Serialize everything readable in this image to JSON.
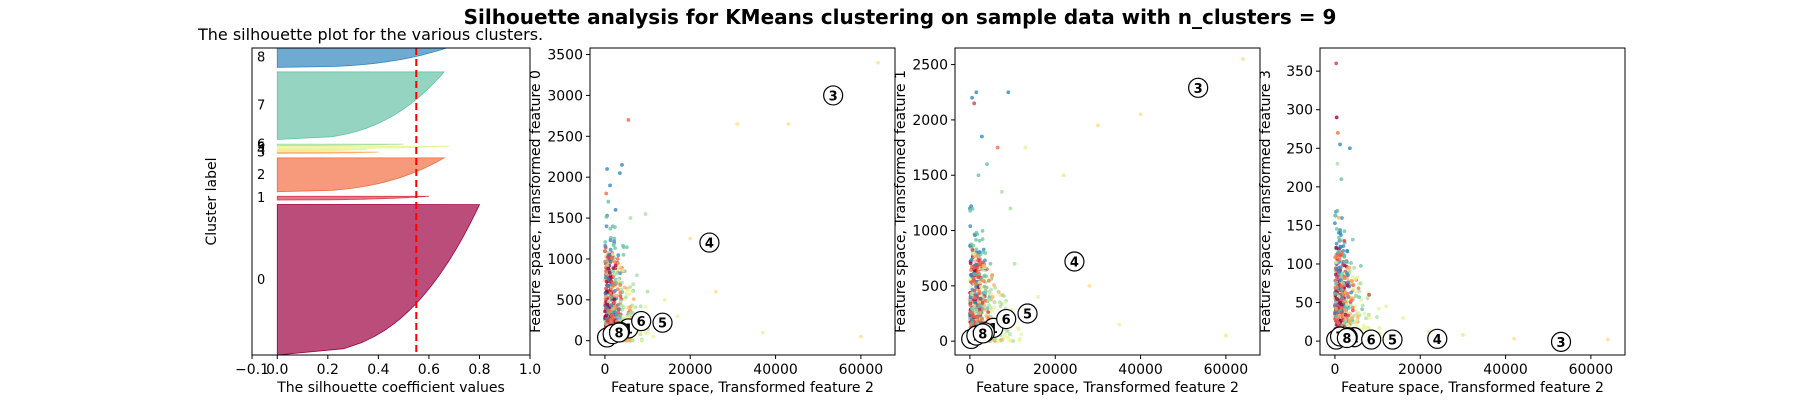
{
  "figure": {
    "title": "Silhouette analysis for KMeans clustering on sample data with n_clusters = 9"
  },
  "palette": [
    "#9e0142",
    "#d53e4f",
    "#f46d43",
    "#fdae61",
    "#fee08b",
    "#e6f598",
    "#abdda4",
    "#66c2a5",
    "#3288bd"
  ],
  "chart_data": [
    {
      "type": "silhouette",
      "title": "The silhouette plot for the various clusters.",
      "xlabel": "The silhouette coefficient values",
      "ylabel": "Cluster label",
      "xlim": [
        -0.1,
        1.0
      ],
      "xticks": [
        -0.1,
        0.0,
        0.2,
        0.4,
        0.6,
        0.8,
        1.0
      ],
      "xtick_labels": [
        "−0.1",
        "0.0",
        "0.2",
        "0.4",
        "0.6",
        "0.8",
        "1.0"
      ],
      "average_silhouette": 0.55,
      "clusters": [
        {
          "label": "0",
          "start": 0.0,
          "size": 0.49,
          "max": 0.8,
          "min": 0.0
        },
        {
          "label": "1",
          "start": 0.505,
          "size": 0.012,
          "max": 0.6,
          "min": 0.0
        },
        {
          "label": "2",
          "start": 0.532,
          "size": 0.11,
          "max": 0.66,
          "min": 0.0
        },
        {
          "label": "3",
          "start": 0.657,
          "size": 0.004,
          "max": 0.4,
          "min": 0.0
        },
        {
          "label": "4",
          "start": 0.666,
          "size": 0.003,
          "max": 0.35,
          "min": 0.0
        },
        {
          "label": "5",
          "start": 0.672,
          "size": 0.008,
          "max": 0.68,
          "min": 0.0
        },
        {
          "label": "6",
          "start": 0.683,
          "size": 0.004,
          "max": 0.5,
          "min": 0.0
        },
        {
          "label": "7",
          "start": 0.702,
          "size": 0.22,
          "max": 0.66,
          "min": 0.0
        },
        {
          "label": "8",
          "start": 0.937,
          "size": 0.063,
          "max": 0.67,
          "min": 0.0
        }
      ]
    },
    {
      "type": "scatter",
      "xlabel": "Feature space, Transformed feature 2",
      "ylabel": "Feature space, Transformed feature 0",
      "xlim": [
        -3500,
        68000
      ],
      "ylim": [
        -175,
        3580
      ],
      "xticks": [
        0,
        20000,
        40000,
        60000
      ],
      "yticks": [
        0,
        500,
        1000,
        1500,
        2000,
        2500,
        3000,
        3500
      ],
      "centers": [
        {
          "label": "0",
          "x": 500,
          "y": 40
        },
        {
          "label": "1",
          "x": 5500,
          "y": 150
        },
        {
          "label": "2",
          "x": 3500,
          "y": 110
        },
        {
          "label": "3",
          "x": 53500,
          "y": 3000
        },
        {
          "label": "4",
          "x": 24500,
          "y": 1200
        },
        {
          "label": "5",
          "x": 13500,
          "y": 220
        },
        {
          "label": "6",
          "x": 8500,
          "y": 240
        },
        {
          "label": "7",
          "x": 1800,
          "y": 80
        },
        {
          "label": "8",
          "x": 3300,
          "y": 100
        }
      ],
      "points": [
        {
          "x": 500,
          "y": 2100,
          "c": 8
        },
        {
          "x": 1200,
          "y": 1900,
          "c": 8
        },
        {
          "x": 2500,
          "y": 1600,
          "c": 8
        },
        {
          "x": 3500,
          "y": 2050,
          "c": 8
        },
        {
          "x": 4000,
          "y": 2150,
          "c": 8
        },
        {
          "x": 1800,
          "y": 1400,
          "c": 7
        },
        {
          "x": 800,
          "y": 1700,
          "c": 7
        },
        {
          "x": 2200,
          "y": 1250,
          "c": 7
        },
        {
          "x": 300,
          "y": 1800,
          "c": 2
        },
        {
          "x": 3000,
          "y": 1000,
          "c": 2
        },
        {
          "x": 5500,
          "y": 2700,
          "c": 2
        },
        {
          "x": 6000,
          "y": 1500,
          "c": 6
        },
        {
          "x": 7500,
          "y": 800,
          "c": 6
        },
        {
          "x": 9500,
          "y": 1550,
          "c": 6
        },
        {
          "x": 10000,
          "y": 600,
          "c": 6
        },
        {
          "x": 14000,
          "y": 500,
          "c": 5
        },
        {
          "x": 17000,
          "y": 300,
          "c": 5
        },
        {
          "x": 20000,
          "y": 1250,
          "c": 4
        },
        {
          "x": 26000,
          "y": 600,
          "c": 4
        },
        {
          "x": 31000,
          "y": 2650,
          "c": 4
        },
        {
          "x": 43000,
          "y": 2650,
          "c": 4
        },
        {
          "x": 64000,
          "y": 3400,
          "c": 4
        },
        {
          "x": 60000,
          "y": 50,
          "c": 4
        },
        {
          "x": 37000,
          "y": 100,
          "c": 5
        }
      ]
    },
    {
      "type": "scatter",
      "xlabel": "Feature space, Transformed feature 2",
      "ylabel": "Feature space, Transformed feature 1",
      "xlim": [
        -3500,
        68000
      ],
      "ylim": [
        -125,
        2650
      ],
      "xticks": [
        0,
        20000,
        40000,
        60000
      ],
      "yticks": [
        0,
        500,
        1000,
        1500,
        2000,
        2500
      ],
      "centers": [
        {
          "label": "0",
          "x": 300,
          "y": 20
        },
        {
          "label": "1",
          "x": 5500,
          "y": 120
        },
        {
          "label": "2",
          "x": 3500,
          "y": 80
        },
        {
          "label": "3",
          "x": 53500,
          "y": 2290
        },
        {
          "label": "4",
          "x": 24500,
          "y": 720
        },
        {
          "label": "5",
          "x": 13500,
          "y": 250
        },
        {
          "label": "6",
          "x": 8500,
          "y": 200
        },
        {
          "label": "7",
          "x": 1500,
          "y": 50
        },
        {
          "label": "8",
          "x": 3000,
          "y": 70
        }
      ],
      "points": [
        {
          "x": 500,
          "y": 2200,
          "c": 8
        },
        {
          "x": 1500,
          "y": 2250,
          "c": 8
        },
        {
          "x": 2800,
          "y": 1850,
          "c": 8
        },
        {
          "x": 9000,
          "y": 2250,
          "c": 8
        },
        {
          "x": 4000,
          "y": 1600,
          "c": 7
        },
        {
          "x": 2000,
          "y": 1500,
          "c": 7
        },
        {
          "x": 1000,
          "y": 2150,
          "c": 1
        },
        {
          "x": 6500,
          "y": 1750,
          "c": 2
        },
        {
          "x": 7500,
          "y": 1350,
          "c": 6
        },
        {
          "x": 9500,
          "y": 1200,
          "c": 6
        },
        {
          "x": 10500,
          "y": 700,
          "c": 6
        },
        {
          "x": 13000,
          "y": 1750,
          "c": 5
        },
        {
          "x": 16000,
          "y": 400,
          "c": 5
        },
        {
          "x": 22000,
          "y": 1500,
          "c": 4
        },
        {
          "x": 28000,
          "y": 500,
          "c": 4
        },
        {
          "x": 30000,
          "y": 1950,
          "c": 4
        },
        {
          "x": 40000,
          "y": 2050,
          "c": 4
        },
        {
          "x": 64000,
          "y": 2550,
          "c": 4
        },
        {
          "x": 60000,
          "y": 50,
          "c": 4
        },
        {
          "x": 35000,
          "y": 150,
          "c": 5
        }
      ]
    },
    {
      "type": "scatter",
      "xlabel": "Feature space, Transformed feature 2",
      "ylabel": "Feature space, Transformed feature 3",
      "xlim": [
        -3500,
        68000
      ],
      "ylim": [
        -18,
        380
      ],
      "xticks": [
        0,
        20000,
        40000,
        60000
      ],
      "yticks": [
        0,
        50,
        100,
        150,
        200,
        250,
        300,
        350
      ],
      "centers": [
        {
          "label": "0",
          "x": 300,
          "y": 2
        },
        {
          "label": "1",
          "x": 4500,
          "y": 5
        },
        {
          "label": "2",
          "x": 3000,
          "y": 5
        },
        {
          "label": "3",
          "x": 53000,
          "y": -1
        },
        {
          "label": "4",
          "x": 24000,
          "y": 3
        },
        {
          "label": "5",
          "x": 13500,
          "y": 2
        },
        {
          "label": "6",
          "x": 8500,
          "y": 2
        },
        {
          "label": "7",
          "x": 1200,
          "y": 6
        },
        {
          "label": "8",
          "x": 2800,
          "y": 4
        }
      ],
      "points": [
        {
          "x": 300,
          "y": 360,
          "c": 1
        },
        {
          "x": 400,
          "y": 290,
          "c": 0
        },
        {
          "x": 700,
          "y": 270,
          "c": 2
        },
        {
          "x": 1200,
          "y": 255,
          "c": 8
        },
        {
          "x": 3500,
          "y": 250,
          "c": 8
        },
        {
          "x": 600,
          "y": 230,
          "c": 6
        },
        {
          "x": 1500,
          "y": 210,
          "c": 7
        },
        {
          "x": 900,
          "y": 160,
          "c": 3
        },
        {
          "x": 2200,
          "y": 130,
          "c": 1
        },
        {
          "x": 4500,
          "y": 95,
          "c": 6
        },
        {
          "x": 6000,
          "y": 75,
          "c": 6
        },
        {
          "x": 8000,
          "y": 60,
          "c": 1
        },
        {
          "x": 12000,
          "y": 45,
          "c": 5
        },
        {
          "x": 16000,
          "y": 30,
          "c": 5
        },
        {
          "x": 22000,
          "y": 12,
          "c": 4
        },
        {
          "x": 30000,
          "y": 8,
          "c": 4
        },
        {
          "x": 42000,
          "y": 3,
          "c": 4
        },
        {
          "x": 64000,
          "y": 2,
          "c": 4
        }
      ]
    }
  ]
}
